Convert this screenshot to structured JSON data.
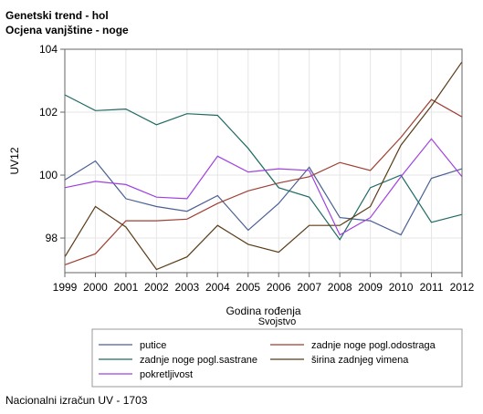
{
  "header": {
    "title": "Genetski trend - hol",
    "subtitle": "Ocjena vanjštine - noge"
  },
  "footer": {
    "note": "Nacionalni izračun UV - 1703"
  },
  "chart_data": {
    "type": "line",
    "xlabel": "Godina rođenja",
    "ylabel": "UV12",
    "x": [
      1999,
      2000,
      2001,
      2002,
      2003,
      2004,
      2005,
      2006,
      2007,
      2008,
      2009,
      2010,
      2011,
      2012
    ],
    "xlim": [
      1999,
      2012
    ],
    "ylim": [
      96.9,
      104
    ],
    "yticks": [
      98,
      100,
      102,
      104
    ],
    "grid": true,
    "legend_title": "Svojstvo",
    "legend_position": "bottom",
    "series": [
      {
        "name": "putice",
        "color": "#4a5f93",
        "values": [
          99.85,
          100.45,
          99.25,
          99.0,
          98.85,
          99.35,
          98.25,
          99.1,
          100.25,
          98.65,
          98.55,
          98.1,
          99.9,
          100.2
        ]
      },
      {
        "name": "zadnje noge pogl.odostraga",
        "color": "#9e3f33",
        "values": [
          97.15,
          97.5,
          98.55,
          98.55,
          98.6,
          99.1,
          99.5,
          99.75,
          99.95,
          100.4,
          100.15,
          101.2,
          102.4,
          101.85
        ]
      },
      {
        "name": "zadnje noge pogl.sastrane",
        "color": "#1f6b63",
        "values": [
          102.55,
          102.05,
          102.1,
          101.6,
          101.95,
          101.9,
          100.85,
          99.6,
          99.3,
          97.95,
          99.6,
          100.0,
          98.5,
          98.75
        ]
      },
      {
        "name": "širina zadnjeg vimena",
        "color": "#5a3b17",
        "values": [
          97.4,
          99.0,
          98.35,
          97.0,
          97.4,
          98.4,
          97.8,
          97.55,
          98.4,
          98.4,
          99.0,
          100.95,
          102.2,
          103.6
        ]
      },
      {
        "name": "pokretljivost",
        "color": "#a040e0",
        "values": [
          99.6,
          99.8,
          99.7,
          99.3,
          99.25,
          100.6,
          100.1,
          100.2,
          100.15,
          98.1,
          98.65,
          99.95,
          101.15,
          99.95
        ]
      }
    ]
  }
}
